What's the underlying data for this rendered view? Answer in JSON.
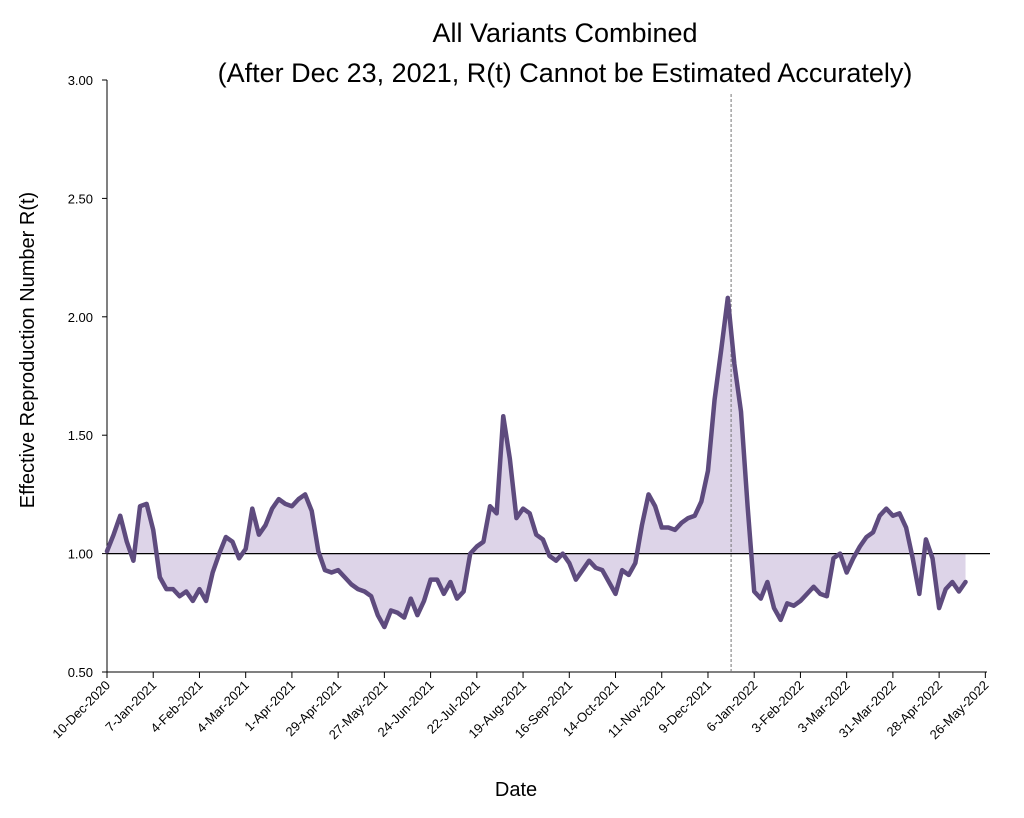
{
  "chart_data": {
    "type": "line",
    "title": "All Variants Combined",
    "subtitle": "(After Dec 23, 2021, R(t) Cannot be Estimated Accurately)",
    "x_label": "Date",
    "y_label": "Effective Reproduction Number R(t)",
    "reference_y": 1,
    "reference_x": "2021-12-23",
    "fill_to_reference": true,
    "xlim": [
      "2020-12-10",
      "2022-05-27"
    ],
    "ylim": [
      0.5,
      3.0
    ],
    "yticks": [
      {
        "value": 0.5,
        "label": "0.50"
      },
      {
        "value": 1.0,
        "label": "1.00"
      },
      {
        "value": 1.5,
        "label": "1.50"
      },
      {
        "value": 2.0,
        "label": "2.00"
      },
      {
        "value": 2.5,
        "label": "2.50"
      },
      {
        "value": 3.0,
        "label": "3.00"
      }
    ],
    "xticks": [
      {
        "value": "2020-12-10",
        "label": "10-Dec-2020"
      },
      {
        "value": "2021-01-07",
        "label": "7-Jan-2021"
      },
      {
        "value": "2021-02-04",
        "label": "4-Feb-2021"
      },
      {
        "value": "2021-03-04",
        "label": "4-Mar-2021"
      },
      {
        "value": "2021-04-01",
        "label": "1-Apr-2021"
      },
      {
        "value": "2021-04-29",
        "label": "29-Apr-2021"
      },
      {
        "value": "2021-05-27",
        "label": "27-May-2021"
      },
      {
        "value": "2021-06-24",
        "label": "24-Jun-2021"
      },
      {
        "value": "2021-07-22",
        "label": "22-Jul-2021"
      },
      {
        "value": "2021-08-19",
        "label": "19-Aug-2021"
      },
      {
        "value": "2021-09-16",
        "label": "16-Sep-2021"
      },
      {
        "value": "2021-10-14",
        "label": "14-Oct-2021"
      },
      {
        "value": "2021-11-11",
        "label": "11-Nov-2021"
      },
      {
        "value": "2021-12-09",
        "label": "9-Dec-2021"
      },
      {
        "value": "2022-01-06",
        "label": "6-Jan-2022"
      },
      {
        "value": "2022-02-03",
        "label": "3-Feb-2022"
      },
      {
        "value": "2022-03-03",
        "label": "3-Mar-2022"
      },
      {
        "value": "2022-03-31",
        "label": "31-Mar-2022"
      },
      {
        "value": "2022-04-28",
        "label": "28-Apr-2022"
      },
      {
        "value": "2022-05-26",
        "label": "26-May-2022"
      }
    ],
    "x": [
      "2020-12-10",
      "2020-12-14",
      "2020-12-18",
      "2020-12-22",
      "2020-12-26",
      "2020-12-30",
      "2021-01-03",
      "2021-01-07",
      "2021-01-11",
      "2021-01-15",
      "2021-01-19",
      "2021-01-23",
      "2021-01-27",
      "2021-01-31",
      "2021-02-04",
      "2021-02-08",
      "2021-02-12",
      "2021-02-16",
      "2021-02-20",
      "2021-02-24",
      "2021-02-28",
      "2021-03-04",
      "2021-03-08",
      "2021-03-12",
      "2021-03-16",
      "2021-03-20",
      "2021-03-24",
      "2021-03-28",
      "2021-04-01",
      "2021-04-05",
      "2021-04-09",
      "2021-04-13",
      "2021-04-17",
      "2021-04-21",
      "2021-04-25",
      "2021-04-29",
      "2021-05-03",
      "2021-05-07",
      "2021-05-11",
      "2021-05-15",
      "2021-05-19",
      "2021-05-23",
      "2021-05-27",
      "2021-05-31",
      "2021-06-04",
      "2021-06-08",
      "2021-06-12",
      "2021-06-16",
      "2021-06-20",
      "2021-06-24",
      "2021-06-28",
      "2021-07-02",
      "2021-07-06",
      "2021-07-10",
      "2021-07-14",
      "2021-07-18",
      "2021-07-22",
      "2021-07-26",
      "2021-07-30",
      "2021-08-03",
      "2021-08-07",
      "2021-08-11",
      "2021-08-15",
      "2021-08-19",
      "2021-08-23",
      "2021-08-27",
      "2021-08-31",
      "2021-09-04",
      "2021-09-08",
      "2021-09-12",
      "2021-09-16",
      "2021-09-20",
      "2021-09-24",
      "2021-09-28",
      "2021-10-02",
      "2021-10-06",
      "2021-10-10",
      "2021-10-14",
      "2021-10-18",
      "2021-10-22",
      "2021-10-26",
      "2021-10-30",
      "2021-11-03",
      "2021-11-07",
      "2021-11-11",
      "2021-11-15",
      "2021-11-19",
      "2021-11-23",
      "2021-11-27",
      "2021-12-01",
      "2021-12-05",
      "2021-12-09",
      "2021-12-13",
      "2021-12-17",
      "2021-12-21",
      "2021-12-25",
      "2021-12-29",
      "2022-01-02",
      "2022-01-06",
      "2022-01-10",
      "2022-01-14",
      "2022-01-18",
      "2022-01-22",
      "2022-01-26",
      "2022-01-30",
      "2022-02-03",
      "2022-02-07",
      "2022-02-11",
      "2022-02-15",
      "2022-02-19",
      "2022-02-23",
      "2022-02-27",
      "2022-03-03",
      "2022-03-07",
      "2022-03-11",
      "2022-03-15",
      "2022-03-19",
      "2022-03-23",
      "2022-03-27",
      "2022-03-31",
      "2022-04-04",
      "2022-04-08",
      "2022-04-12",
      "2022-04-16",
      "2022-04-20",
      "2022-04-24",
      "2022-04-28",
      "2022-05-02",
      "2022-05-06",
      "2022-05-10",
      "2022-05-14"
    ],
    "series": [
      {
        "name": "R(t)",
        "color": "#5e4b7e",
        "fill_color": "#ddd4e8",
        "values": [
          1.01,
          1.08,
          1.16,
          1.05,
          0.97,
          1.2,
          1.21,
          1.1,
          0.9,
          0.85,
          0.85,
          0.82,
          0.84,
          0.8,
          0.85,
          0.8,
          0.92,
          1.0,
          1.07,
          1.05,
          0.98,
          1.02,
          1.19,
          1.08,
          1.12,
          1.19,
          1.23,
          1.21,
          1.2,
          1.23,
          1.25,
          1.18,
          1.01,
          0.93,
          0.92,
          0.93,
          0.9,
          0.87,
          0.85,
          0.84,
          0.82,
          0.74,
          0.69,
          0.76,
          0.75,
          0.73,
          0.81,
          0.74,
          0.8,
          0.89,
          0.89,
          0.83,
          0.88,
          0.81,
          0.84,
          1.0,
          1.03,
          1.05,
          1.2,
          1.17,
          1.58,
          1.4,
          1.15,
          1.19,
          1.17,
          1.08,
          1.06,
          0.99,
          0.97,
          1.0,
          0.96,
          0.89,
          0.93,
          0.97,
          0.94,
          0.93,
          0.88,
          0.83,
          0.93,
          0.91,
          0.96,
          1.12,
          1.25,
          1.2,
          1.11,
          1.11,
          1.1,
          1.13,
          1.15,
          1.16,
          1.22,
          1.35,
          1.65,
          1.86,
          2.08,
          1.8,
          1.6,
          1.2,
          0.84,
          0.81,
          0.88,
          0.77,
          0.72,
          0.79,
          0.78,
          0.8,
          0.83,
          0.86,
          0.83,
          0.82,
          0.98,
          1.0,
          0.92,
          0.98,
          1.03,
          1.07,
          1.09,
          1.16,
          1.19,
          1.16,
          1.17,
          1.11,
          0.98,
          0.83,
          1.06,
          0.98,
          0.77,
          0.85,
          0.88,
          0.84,
          0.88
        ]
      }
    ]
  }
}
